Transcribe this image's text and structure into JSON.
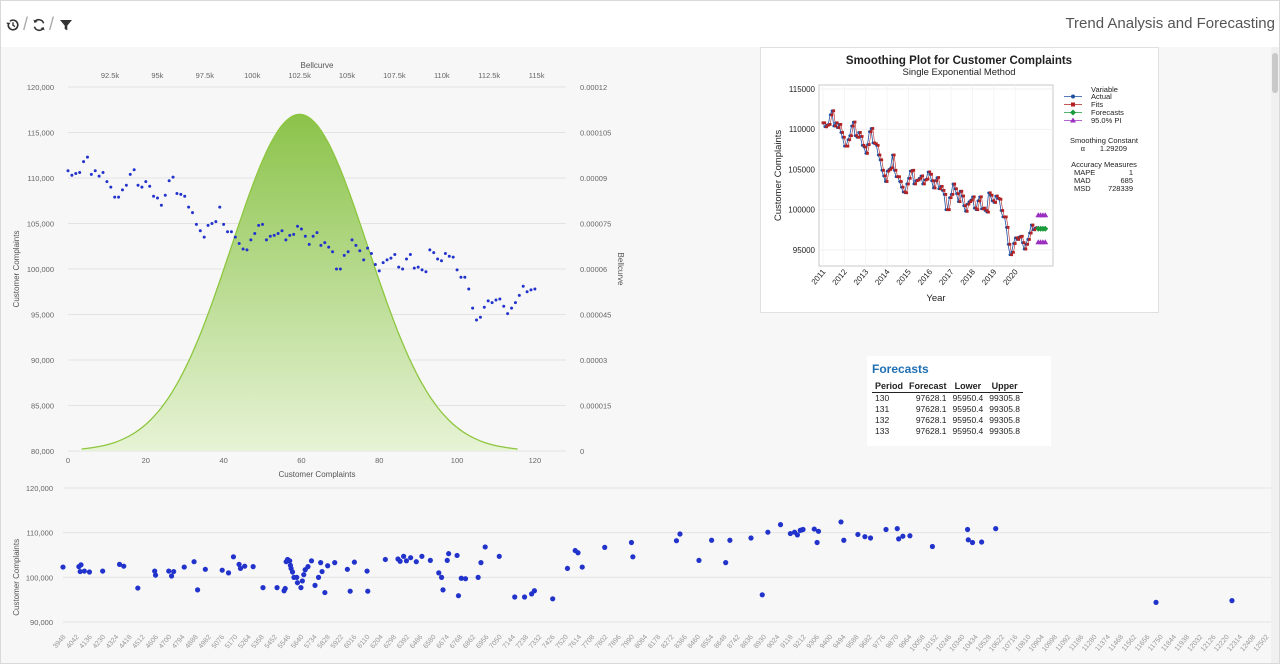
{
  "toolbar": {
    "title": "Trend Analysis and Forecasting",
    "buttons": [
      {
        "icon": "history-icon"
      },
      {
        "icon": "refresh-icon"
      },
      {
        "icon": "filter-icon"
      }
    ]
  },
  "colors": {
    "scatter_blue": "#2233cc",
    "bellcurve_green": "#8dc63f",
    "grid": "#e3e3e3",
    "actual_blue": "#1f4fa0",
    "fits_red": "#b22222",
    "forecast_green": "#1a9a3a",
    "pi_purple": "#9b30c0",
    "forecasts_title": "#1f6fb2"
  },
  "chart_data": [
    {
      "type": "scatter",
      "xlabel": "Customer Complaints",
      "ylabel": "Customer Complaints",
      "secondary_x_label": "Bellcurve",
      "secondary_y_label": "Bellcurve",
      "xlim": [
        0,
        128
      ],
      "ylim": [
        80000,
        120000
      ],
      "x_ticks": [
        "0",
        "20",
        "40",
        "60",
        "80",
        "100",
        "120"
      ],
      "y_ticks": [
        "80,000",
        "85,000",
        "90,000",
        "95,000",
        "100,000",
        "105,000",
        "110,000",
        "115,000",
        "120,000"
      ],
      "top_ticks": [
        "92.5k",
        "95k",
        "97.5k",
        "100k",
        "102.5k",
        "105k",
        "107.5k",
        "110k",
        "112.5k",
        "115k"
      ],
      "right_ticks": [
        "0",
        "0.000015",
        "0.00003",
        "0.000045",
        "0.00006",
        "0.000075",
        "0.00009",
        "0.000105",
        "0.00012"
      ],
      "grid": true,
      "bellcurve": {
        "mean": 102500,
        "sd": 3600,
        "peak": 0.000111
      },
      "series": [
        {
          "values": [
            110800,
            110300,
            110500,
            110600,
            111800,
            112300,
            110400,
            110800,
            110200,
            110600,
            109600,
            109000,
            107900,
            107900,
            108700,
            109200,
            110400,
            110900,
            109200,
            109000,
            109600,
            109100,
            108000,
            107800,
            107000,
            108100,
            109700,
            110100,
            108300,
            108200,
            108000,
            106800,
            106200,
            104900,
            104200,
            103500,
            104800,
            105000,
            105200,
            106800,
            104900,
            104100,
            104100,
            103500,
            102800,
            102200,
            102100,
            103200,
            103900,
            104800,
            104900,
            103200,
            103600,
            103700,
            103900,
            104200,
            103200,
            103700,
            103800,
            104700,
            104400,
            103600,
            102700,
            103600,
            104000,
            102600,
            102900,
            102400,
            101900,
            100000,
            100000,
            101500,
            101900,
            103200,
            102600,
            102000,
            101000,
            102300,
            101700,
            100500,
            99800,
            100700,
            101000,
            101200,
            101600,
            100200,
            100000,
            101100,
            101600,
            100100,
            100200,
            99900,
            99700,
            102100,
            101800,
            101100,
            100900,
            101700,
            101400,
            101300,
            99900,
            99100,
            99100,
            97800,
            95700,
            94400,
            94700,
            95800,
            96500,
            96300,
            96600,
            96700,
            95900,
            95100,
            95700,
            96300,
            97100,
            98100,
            97500,
            97700,
            97800
          ]
        }
      ]
    },
    {
      "type": "line",
      "title": "Smoothing Plot for Customer Complaints",
      "subtitle": "Single Exponential Method",
      "xlabel": "Year",
      "ylabel": "Customer Complaints",
      "x_ticks": [
        "2011",
        "2012",
        "2013",
        "2014",
        "2015",
        "2016",
        "2017",
        "2018",
        "2019",
        "2020"
      ],
      "y_ticks": [
        "95000",
        "100000",
        "105000",
        "110000",
        "115000"
      ],
      "ylim": [
        93000,
        115500
      ],
      "legend": {
        "heading": "Variable",
        "items": [
          "Actual",
          "Fits",
          "Forecasts",
          "95.0% PI"
        ]
      },
      "smoothing_constant_label": "Smoothing Constant",
      "alpha_label": "α",
      "alpha": "1.29209",
      "accuracy_label": "Accuracy Measures",
      "measures": [
        {
          "name": "MAPE",
          "value": "1"
        },
        {
          "name": "MAD",
          "value": "685"
        },
        {
          "name": "MSD",
          "value": "728339"
        }
      ],
      "forecast_value": 97628.1,
      "pi_lower": 95950.4,
      "pi_upper": 99305.8
    },
    {
      "type": "scatter",
      "ylabel": "Customer Complaints",
      "ylim": [
        88000,
        122000
      ],
      "y_ticks": [
        "90,000",
        "100,000",
        "110,000",
        "120,000"
      ],
      "grid": true,
      "x_ticks": [
        "3948",
        "4042",
        "4136",
        "4230",
        "4324",
        "4418",
        "4512",
        "4606",
        "4700",
        "4794",
        "4888",
        "4982",
        "5076",
        "5170",
        "5264",
        "5358",
        "5452",
        "5546",
        "5640",
        "5734",
        "5828",
        "5922",
        "6016",
        "6110",
        "6204",
        "6298",
        "6392",
        "6486",
        "6580",
        "6674",
        "6768",
        "6862",
        "6956",
        "7050",
        "7144",
        "7238",
        "7332",
        "7426",
        "7520",
        "7614",
        "7708",
        "7802",
        "7896",
        "7990",
        "8084",
        "8178",
        "8272",
        "8366",
        "8460",
        "8554",
        "8648",
        "8742",
        "8836",
        "8930",
        "9024",
        "9118",
        "9212",
        "9306",
        "9400",
        "9494",
        "9588",
        "9682",
        "9776",
        "9870",
        "9964",
        "10058",
        "10152",
        "10246",
        "10340",
        "10434",
        "10528",
        "10622",
        "10716",
        "10810",
        "10904",
        "10998",
        "11092",
        "11186",
        "11280",
        "11374",
        "11468",
        "11562",
        "11656",
        "11750",
        "11844",
        "11938",
        "12032",
        "12126",
        "12220",
        "12314",
        "12408",
        "12502"
      ],
      "points": [
        [
          3948,
          102300
        ],
        [
          4061,
          102400
        ],
        [
          4070,
          101300
        ],
        [
          4076,
          102800
        ],
        [
          4100,
          101400
        ],
        [
          4136,
          101200
        ],
        [
          4230,
          101400
        ],
        [
          4350,
          102900
        ],
        [
          4380,
          102500
        ],
        [
          4480,
          97600
        ],
        [
          4600,
          101400
        ],
        [
          4606,
          100500
        ],
        [
          4700,
          101400
        ],
        [
          4720,
          100300
        ],
        [
          4735,
          101300
        ],
        [
          4810,
          102300
        ],
        [
          4880,
          103500
        ],
        [
          4905,
          97200
        ],
        [
          4960,
          101800
        ],
        [
          5080,
          101600
        ],
        [
          5125,
          101000
        ],
        [
          5160,
          104600
        ],
        [
          5200,
          102900
        ],
        [
          5210,
          102000
        ],
        [
          5240,
          102500
        ],
        [
          5300,
          102400
        ],
        [
          5370,
          97700
        ],
        [
          5470,
          97700
        ],
        [
          5520,
          97000
        ],
        [
          5528,
          97500
        ],
        [
          5535,
          103500
        ],
        [
          5545,
          104000
        ],
        [
          5560,
          103700
        ],
        [
          5565,
          102700
        ],
        [
          5570,
          102000
        ],
        [
          5580,
          101200
        ],
        [
          5590,
          100000
        ],
        [
          5610,
          100000
        ],
        [
          5615,
          98800
        ],
        [
          5640,
          97700
        ],
        [
          5650,
          99200
        ],
        [
          5660,
          100600
        ],
        [
          5670,
          101700
        ],
        [
          5690,
          102400
        ],
        [
          5715,
          103700
        ],
        [
          5740,
          98200
        ],
        [
          5765,
          100000
        ],
        [
          5780,
          103300
        ],
        [
          5790,
          101300
        ],
        [
          5810,
          96600
        ],
        [
          5830,
          102600
        ],
        [
          5880,
          103300
        ],
        [
          5970,
          101800
        ],
        [
          5990,
          96900
        ],
        [
          6020,
          103400
        ],
        [
          6110,
          101400
        ],
        [
          6115,
          96900
        ],
        [
          6240,
          104000
        ],
        [
          6330,
          104100
        ],
        [
          6345,
          103600
        ],
        [
          6370,
          104700
        ],
        [
          6390,
          103700
        ],
        [
          6420,
          104400
        ],
        [
          6460,
          103500
        ],
        [
          6500,
          104700
        ],
        [
          6560,
          103800
        ],
        [
          6620,
          101000
        ],
        [
          6640,
          100000
        ],
        [
          6650,
          97200
        ],
        [
          6680,
          103800
        ],
        [
          6690,
          105300
        ],
        [
          6750,
          104900
        ],
        [
          6760,
          95900
        ],
        [
          6780,
          99800
        ],
        [
          6810,
          99700
        ],
        [
          6900,
          100000
        ],
        [
          6920,
          103300
        ],
        [
          6950,
          106800
        ],
        [
          7050,
          104700
        ],
        [
          7160,
          95600
        ],
        [
          7230,
          95600
        ],
        [
          7280,
          96300
        ],
        [
          7300,
          97000
        ],
        [
          7430,
          95200
        ],
        [
          7535,
          102000
        ],
        [
          7590,
          106000
        ],
        [
          7610,
          105500
        ],
        [
          7640,
          102300
        ],
        [
          7800,
          106700
        ],
        [
          7990,
          107800
        ],
        [
          8000,
          104600
        ],
        [
          8310,
          108200
        ],
        [
          8335,
          109700
        ],
        [
          8470,
          103800
        ],
        [
          8560,
          108300
        ],
        [
          8660,
          103300
        ],
        [
          8690,
          108300
        ],
        [
          8840,
          108800
        ],
        [
          8920,
          96100
        ],
        [
          8960,
          110100
        ],
        [
          9050,
          111800
        ],
        [
          9120,
          109800
        ],
        [
          9150,
          110100
        ],
        [
          9170,
          109500
        ],
        [
          9190,
          110500
        ],
        [
          9200,
          110600
        ],
        [
          9210,
          110700
        ],
        [
          9290,
          110800
        ],
        [
          9310,
          107800
        ],
        [
          9320,
          110300
        ],
        [
          9480,
          112400
        ],
        [
          9500,
          108300
        ],
        [
          9600,
          109600
        ],
        [
          9650,
          109100
        ],
        [
          9690,
          108800
        ],
        [
          9800,
          110700
        ],
        [
          9880,
          110900
        ],
        [
          9890,
          108600
        ],
        [
          9920,
          109200
        ],
        [
          9970,
          109300
        ],
        [
          10130,
          106900
        ],
        [
          10380,
          110700
        ],
        [
          10385,
          108400
        ],
        [
          10415,
          107800
        ],
        [
          10480,
          107900
        ],
        [
          10580,
          110900
        ],
        [
          11720,
          94400
        ],
        [
          12260,
          94800
        ]
      ]
    }
  ],
  "forecasts": {
    "title": "Forecasts",
    "columns": [
      "Period",
      "Forecast",
      "Lower",
      "Upper"
    ],
    "rows": [
      [
        "130",
        "97628.1",
        "95950.4",
        "99305.8"
      ],
      [
        "131",
        "97628.1",
        "95950.4",
        "99305.8"
      ],
      [
        "132",
        "97628.1",
        "95950.4",
        "99305.8"
      ],
      [
        "133",
        "97628.1",
        "95950.4",
        "99305.8"
      ]
    ]
  }
}
